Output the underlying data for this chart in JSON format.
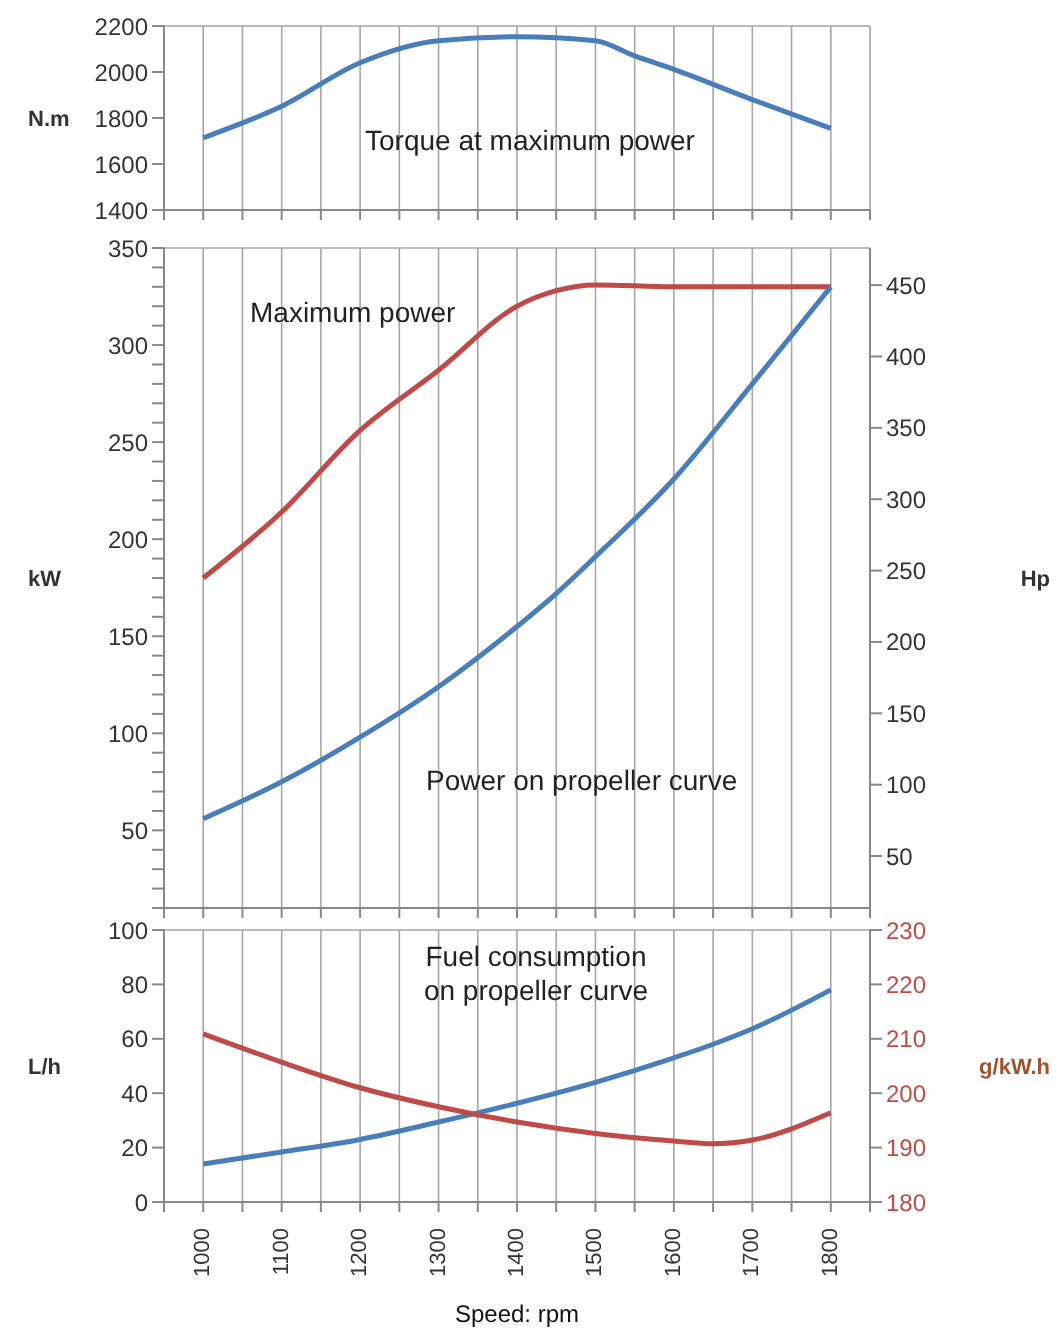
{
  "chart_data": [
    {
      "type": "line",
      "ylabel": "N.m",
      "annotations": [
        "Torque at maximum power"
      ],
      "x": [
        1000,
        1100,
        1200,
        1300,
        1400,
        1500,
        1550,
        1600,
        1700,
        1800
      ],
      "series": [
        {
          "color": "#4a7ebb",
          "values": [
            1714,
            1851,
            2040,
            2136,
            2153,
            2136,
            2070,
            2011,
            1880,
            1755
          ]
        }
      ],
      "xlim": [
        950,
        1850
      ],
      "xticks": [
        {
          "value": 950,
          "label": null
        },
        1000,
        {
          "value": 1050,
          "label": null
        },
        1100,
        {
          "value": 1150,
          "label": null
        },
        1200,
        {
          "value": 1250,
          "label": null
        },
        1300,
        {
          "value": 1350,
          "label": null
        },
        1400,
        {
          "value": 1450,
          "label": null
        },
        1500,
        {
          "value": 1550,
          "label": null
        },
        1600,
        {
          "value": 1650,
          "label": null
        },
        1700,
        {
          "value": 1750,
          "label": null
        },
        1800,
        {
          "value": 1850,
          "label": null
        }
      ],
      "ylim": [
        1400,
        2200
      ],
      "yticks": [
        1400,
        1600,
        1800,
        2000,
        2200
      ],
      "grid": true,
      "tick_labels": "y",
      "marker": "none",
      "line_style": "solid"
    },
    {
      "type": "line",
      "ylabel": "kW",
      "y2label": "Hp",
      "annotations": [
        "Maximum power",
        "Power on propeller curve"
      ],
      "x": [
        1000,
        1100,
        1200,
        1300,
        1400,
        1450,
        1500,
        1600,
        1700,
        1800
      ],
      "series": [
        {
          "color": "#be4b48",
          "values": [
            180,
            214,
            256,
            287,
            320,
            328,
            331,
            330,
            330,
            330
          ]
        },
        {
          "color": "#4a7ebb",
          "values": [
            56,
            75,
            98,
            124,
            155,
            172,
            191,
            231,
            280,
            330
          ]
        }
      ],
      "xlim": [
        950,
        1850
      ],
      "xticks": [
        {
          "value": 950,
          "label": null
        },
        1000,
        {
          "value": 1050,
          "label": null
        },
        1100,
        {
          "value": 1150,
          "label": null
        },
        1200,
        {
          "value": 1250,
          "label": null
        },
        1300,
        {
          "value": 1350,
          "label": null
        },
        1400,
        {
          "value": 1450,
          "label": null
        },
        1500,
        {
          "value": 1550,
          "label": null
        },
        1600,
        {
          "value": 1650,
          "label": null
        },
        1700,
        {
          "value": 1750,
          "label": null
        },
        1800,
        {
          "value": 1850,
          "label": null
        }
      ],
      "ylim": [
        10,
        350
      ],
      "yticks": [
        {
          "value": 10,
          "label": null
        },
        {
          "value": 20,
          "label": null
        },
        {
          "value": 30,
          "label": null
        },
        {
          "value": 40,
          "label": null
        },
        50,
        {
          "value": 60,
          "label": null
        },
        {
          "value": 70,
          "label": null
        },
        {
          "value": 80,
          "label": null
        },
        {
          "value": 90,
          "label": null
        },
        100,
        {
          "value": 110,
          "label": null
        },
        {
          "value": 120,
          "label": null
        },
        {
          "value": 130,
          "label": null
        },
        {
          "value": 140,
          "label": null
        },
        150,
        {
          "value": 160,
          "label": null
        },
        {
          "value": 170,
          "label": null
        },
        {
          "value": 180,
          "label": null
        },
        {
          "value": 190,
          "label": null
        },
        200,
        {
          "value": 210,
          "label": null
        },
        {
          "value": 220,
          "label": null
        },
        {
          "value": 230,
          "label": null
        },
        {
          "value": 240,
          "label": null
        },
        250,
        {
          "value": 260,
          "label": null
        },
        {
          "value": 270,
          "label": null
        },
        {
          "value": 280,
          "label": null
        },
        {
          "value": 290,
          "label": null
        },
        300,
        {
          "value": 310,
          "label": null
        },
        {
          "value": 320,
          "label": null
        },
        {
          "value": 330,
          "label": null
        },
        {
          "value": 340,
          "label": null
        },
        350
      ],
      "y2lim": [
        13.6,
        476
      ],
      "y2ticks": [
        50,
        100,
        150,
        200,
        250,
        300,
        350,
        400,
        450
      ],
      "grid": true,
      "tick_labels": "y",
      "marker": "none",
      "line_style": "solid"
    },
    {
      "type": "line",
      "xlabel": "Speed: rpm",
      "ylabel": "L/h",
      "y2label": "g/kW.h",
      "annotations": [
        "Fuel consumption\non propeller curve"
      ],
      "x": [
        1000,
        1100,
        1200,
        1300,
        1400,
        1500,
        1600,
        1650,
        1700,
        1800
      ],
      "series": [
        {
          "color": "#4a7ebb",
          "values": [
            14,
            18.4,
            23,
            29.4,
            36.3,
            44,
            53,
            58,
            63.7,
            78
          ]
        },
        {
          "color": "#be4b48",
          "axis": "y2",
          "values": [
            210.9,
            205.7,
            201,
            197.5,
            194.7,
            192.6,
            191.2,
            190.7,
            191.4,
            196.4
          ]
        }
      ],
      "xlim": [
        950,
        1850
      ],
      "xticks": [
        {
          "value": 950,
          "label": null
        },
        1000,
        {
          "value": 1050,
          "label": null
        },
        1100,
        {
          "value": 1150,
          "label": null
        },
        1200,
        {
          "value": 1250,
          "label": null
        },
        1300,
        {
          "value": 1350,
          "label": null
        },
        1400,
        {
          "value": 1450,
          "label": null
        },
        1500,
        {
          "value": 1550,
          "label": null
        },
        1600,
        {
          "value": 1650,
          "label": null
        },
        1700,
        {
          "value": 1750,
          "label": null
        },
        1800,
        {
          "value": 1850,
          "label": null
        }
      ],
      "ylim": [
        0,
        100
      ],
      "yticks": [
        0,
        20,
        40,
        60,
        80,
        100
      ],
      "y2lim": [
        180,
        230
      ],
      "y2ticks": [
        180,
        190,
        200,
        210,
        220,
        230
      ],
      "grid": true,
      "marker": "none",
      "line_style": "solid"
    }
  ]
}
